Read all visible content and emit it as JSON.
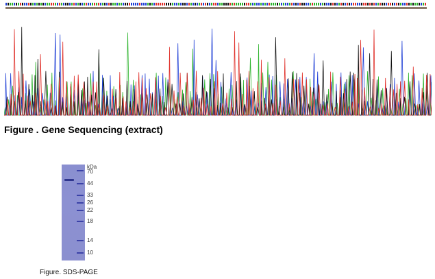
{
  "figures": {
    "sequencing_caption": "Figure . Gene Sequencing (extract)",
    "sds_caption": "Figure. SDS-PAGE"
  },
  "chromatogram": {
    "base_colors": {
      "A": "#2bb32b",
      "C": "#1f3fd6",
      "G": "#111111",
      "T": "#e0302a"
    }
  },
  "gel": {
    "unit_label": "kDa",
    "marker_labels": [
      "70",
      "44",
      "33",
      "26",
      "22",
      "18",
      "14",
      "10"
    ],
    "colors": {
      "gel": "#8a8fd0",
      "band": "#3b42a8"
    }
  }
}
